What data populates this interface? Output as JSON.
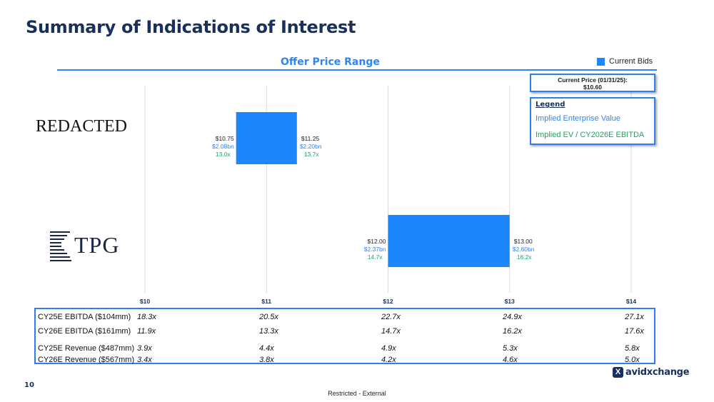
{
  "page": {
    "title": "Summary of Indications of Interest",
    "page_number": "10",
    "footer": "Restricted - External",
    "brand": "avidxchange",
    "brand_mark": "X"
  },
  "legend": {
    "current_bids": "Current Bids",
    "current_price_label": "Current Price (01/31/25):",
    "current_price_value": "$10.60",
    "heading": "Legend",
    "ev_label": "Implied Enterprise Value",
    "multiple_label": "Implied EV / CY2026E EBITDA"
  },
  "bidders": {
    "first": "REDACTED",
    "second": "TPG"
  },
  "colors": {
    "bar": "#1e86fb",
    "ev_text": "#2f84f6",
    "multiple_text": "#19a55f",
    "title": "#17305c",
    "grid": "#d9d9d9"
  },
  "chart_data": {
    "type": "bar",
    "orientation": "horizontal-floating",
    "title": "Offer Price Range",
    "xlabel": "",
    "ylabel": "",
    "xlim": [
      10,
      14
    ],
    "x_ticks": [
      "$10",
      "$11",
      "$12",
      "$13",
      "$14"
    ],
    "grid": true,
    "legend_position": "top-right",
    "series": [
      {
        "name": "Current Bids",
        "ranges": [
          {
            "bidder": "REDACTED",
            "low": 10.75,
            "high": 11.25,
            "low_label": {
              "price": "$10.75",
              "ev": "$2.08bn",
              "multiple": "13.0x"
            },
            "high_label": {
              "price": "$11.25",
              "ev": "$2.20bn",
              "multiple": "13.7x"
            }
          },
          {
            "bidder": "TPG",
            "low": 12.0,
            "high": 13.0,
            "low_label": {
              "price": "$12.00",
              "ev": "$2.37bn",
              "multiple": "14.7x"
            },
            "high_label": {
              "price": "$13.00",
              "ev": "$2.60bn",
              "multiple": "16.2x"
            }
          }
        ]
      }
    ]
  },
  "multiples_table": [
    {
      "label": "CY25E EBITDA ($104mm)",
      "values": [
        "18.3x",
        "20.5x",
        "22.7x",
        "24.9x",
        "27.1x"
      ]
    },
    {
      "label": "CY26E EBITDA ($161mm)",
      "values": [
        "11.9x",
        "13.3x",
        "14.7x",
        "16.2x",
        "17.6x"
      ]
    },
    {
      "label": "CY25E Revenue ($487mm)",
      "values": [
        "3.9x",
        "4.4x",
        "4.9x",
        "5.3x",
        "5.8x"
      ]
    },
    {
      "label": "CY26E Revenue ($567mm)",
      "values": [
        "3.4x",
        "3.8x",
        "4.2x",
        "4.6x",
        "5.0x"
      ]
    }
  ]
}
